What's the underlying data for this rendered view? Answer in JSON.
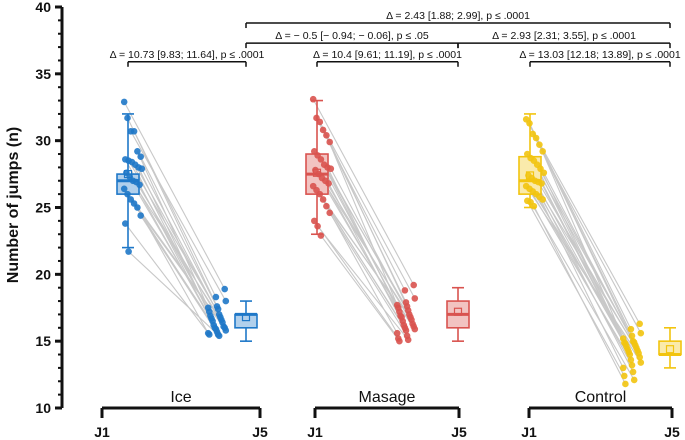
{
  "chart_data": {
    "type": "box-swarm-paired",
    "ylabel": "Number of jumps (n)",
    "ylim": [
      10,
      40
    ],
    "yticks": [
      10,
      15,
      20,
      25,
      30,
      35,
      40
    ],
    "x_categories": [
      "J1",
      "J5"
    ],
    "groups": [
      {
        "name": "Ice",
        "color": "#1f78c8",
        "J1": {
          "min": 22,
          "q1": 26,
          "median": 27,
          "q3": 27.5,
          "max": 32,
          "mean": 27.5,
          "points": [
            32.9,
            31.7,
            30.7,
            30.7,
            29.2,
            28.8,
            28.6,
            28.5,
            28.4,
            28.2,
            28.0,
            27.9,
            27.6,
            27.3,
            27.0,
            26.9,
            26.7,
            26.4,
            26.0,
            25.6,
            25.3,
            25.0,
            24.4,
            23.8,
            21.7
          ]
        },
        "J5": {
          "min": 15,
          "q1": 16,
          "median": 17,
          "q3": 17,
          "max": 18,
          "mean": 16.8,
          "points": [
            18.9,
            18.3,
            18.0,
            17.6,
            17.5,
            17.4,
            17.2,
            17.0,
            16.9,
            16.8,
            16.7,
            16.6,
            16.5,
            16.4,
            16.2,
            16.1,
            16.0,
            16.0,
            15.9,
            15.8,
            15.7,
            15.6,
            15.5,
            15.5,
            15.4
          ]
        }
      },
      {
        "name": "Masage",
        "color": "#d9534f",
        "J1": {
          "min": 23,
          "q1": 26,
          "median": 27.5,
          "q3": 29,
          "max": 33,
          "mean": 27.6,
          "points": [
            33.1,
            31.7,
            31.4,
            30.8,
            30.4,
            29.9,
            29.2,
            28.9,
            28.6,
            28.2,
            28.0,
            27.9,
            27.8,
            27.5,
            27.2,
            27.0,
            26.8,
            26.6,
            26.3,
            26.0,
            25.6,
            25.1,
            24.6,
            24.0,
            23.6,
            22.9
          ]
        },
        "J5": {
          "min": 15,
          "q1": 16,
          "median": 17,
          "q3": 18,
          "max": 19,
          "mean": 17.2,
          "points": [
            19.2,
            18.8,
            18.2,
            17.9,
            17.7,
            17.5,
            17.3,
            17.2,
            17.0,
            16.9,
            16.8,
            16.6,
            16.5,
            16.3,
            16.2,
            16.0,
            15.9,
            15.8,
            15.6,
            15.4,
            15.2,
            15.1,
            15.0,
            16.8,
            17.6,
            16.1
          ]
        }
      },
      {
        "name": "Control",
        "color": "#f2c40f",
        "J1": {
          "min": 25,
          "q1": 26,
          "median": 27,
          "q3": 28.8,
          "max": 32,
          "mean": 27.4,
          "points": [
            31.6,
            31.3,
            30.5,
            30.2,
            29.7,
            29.2,
            29.0,
            28.7,
            28.5,
            28.2,
            27.9,
            27.6,
            27.4,
            27.2,
            27.0,
            26.8,
            26.6,
            26.4,
            26.2,
            26.0,
            25.8,
            25.6,
            25.4,
            25.1,
            25.5,
            26.9
          ]
        },
        "J5": {
          "min": 13,
          "q1": 14,
          "median": 14,
          "q3": 15,
          "max": 16,
          "mean": 14.4,
          "points": [
            16.3,
            15.9,
            15.6,
            15.4,
            15.2,
            15.0,
            14.9,
            14.8,
            14.7,
            14.6,
            14.5,
            14.4,
            14.3,
            14.2,
            14.1,
            14.0,
            13.8,
            13.6,
            13.4,
            13.2,
            13.0,
            12.7,
            12.4,
            12.1,
            11.8,
            14.9
          ]
        }
      }
    ],
    "annotations": [
      {
        "text": "Δ = 10.73 [9.83; 11.64],  p ≤ .0001",
        "from_group": 0,
        "from_day": "J1",
        "to_group": 0,
        "to_day": "J5",
        "y": 35.9
      },
      {
        "text": "Δ = 10.4 [9.61; 11.19],  p ≤ .0001",
        "from_group": 1,
        "from_day": "J1",
        "to_group": 1,
        "to_day": "J5",
        "y": 35.9
      },
      {
        "text": "Δ = 13.03 [12.18; 13.89],  p ≤ .0001",
        "from_group": 2,
        "from_day": "J1",
        "to_group": 2,
        "to_day": "J5",
        "y": 35.9
      },
      {
        "text": "Δ = − 0.5 [− 0.94; − 0.06],  p ≤ .05",
        "from_group": 0,
        "from_day": "J5",
        "to_group": 1,
        "to_day": "J5",
        "y": 37.3
      },
      {
        "text": "Δ = 2.93 [2.31; 3.55],  p ≤ .0001",
        "from_group": 1,
        "from_day": "J5",
        "to_group": 2,
        "to_day": "J5",
        "y": 37.3
      },
      {
        "text": "Δ = 2.43 [1.88; 2.99],  p ≤ .0001",
        "from_group": 0,
        "from_day": "J5",
        "to_group": 2,
        "to_day": "J5",
        "y": 38.8
      }
    ]
  }
}
